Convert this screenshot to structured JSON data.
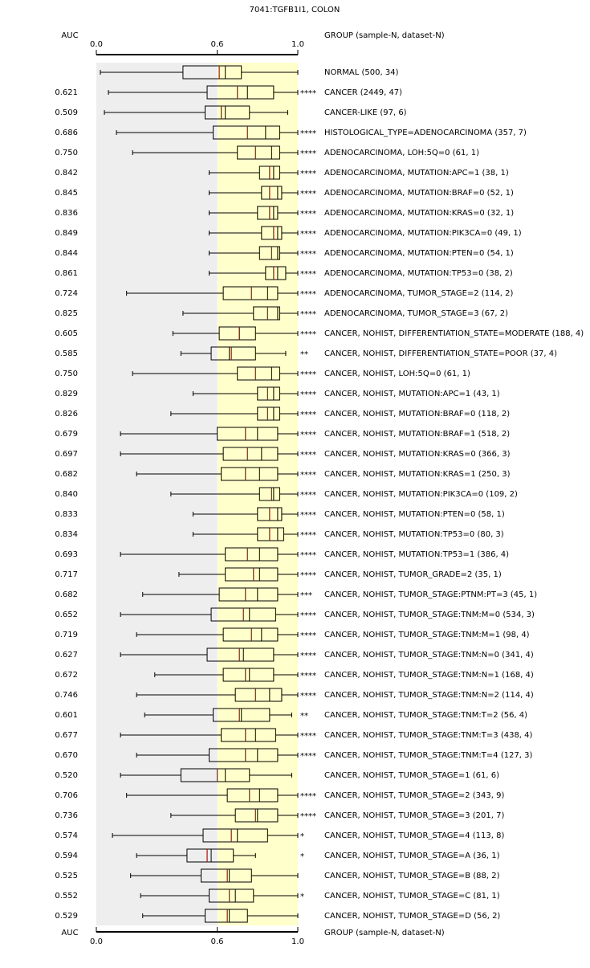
{
  "chart_data": {
    "type": "box",
    "title": "7041:TGFB1I1, COLON",
    "auc_header": "AUC",
    "group_header": "GROUP (sample-N, dataset-N)",
    "xlim": [
      0,
      1
    ],
    "xticks": [
      {
        "value": 0,
        "label": "0.0"
      },
      0.6,
      {
        "value": 1,
        "label": "1.0"
      }
    ],
    "bands": [
      {
        "range": [
          0,
          0.6
        ],
        "color": "#eeeeee"
      },
      {
        "range": [
          0.6,
          1
        ],
        "color": "#ffffcc"
      }
    ],
    "colors": {
      "box": "#000000",
      "mean": "#cc0000",
      "stars": "#cc0000"
    },
    "rows": [
      {
        "label": "NORMAL (500, 34)",
        "auc": null,
        "stars": null,
        "color": "#000000",
        "stats": [
          0.02,
          0.43,
          0.64,
          0.61,
          0.72,
          1.0
        ]
      },
      {
        "label": "CANCER (2449, 47)",
        "auc": {
          "value": 0.621,
          "label": "0.621"
        },
        "stars": "****",
        "color": "#cc0000",
        "stats": [
          0.06,
          0.55,
          0.75,
          0.7,
          0.88,
          1.0
        ]
      },
      {
        "label": "CANCER-LIKE (97, 6)",
        "auc": {
          "value": 0.509,
          "label": "0.509"
        },
        "stars": null,
        "color": "#000000",
        "stats": [
          0.04,
          0.54,
          0.64,
          0.62,
          0.76,
          0.95
        ]
      },
      {
        "label": "HISTOLOGICAL_TYPE=ADENOCARCINOMA (357, 7)",
        "auc": {
          "value": 0.686,
          "label": "0.686"
        },
        "stars": "****",
        "color": "#cc0000",
        "stats": [
          0.1,
          0.58,
          0.84,
          0.75,
          0.91,
          1.0
        ]
      },
      {
        "label": "ADENOCARCINOMA, LOH:5Q=0 (61, 1)",
        "auc": {
          "value": 0.75,
          "label": "0.750"
        },
        "stars": "****",
        "color": "#cc0000",
        "stats": [
          0.18,
          0.7,
          0.87,
          0.79,
          0.91,
          1.0
        ]
      },
      {
        "label": "ADENOCARCINOMA, MUTATION:APC=1 (38, 1)",
        "auc": {
          "value": 0.842,
          "label": "0.842"
        },
        "stars": "****",
        "color": "#cc0000",
        "stats": [
          0.56,
          0.81,
          0.88,
          0.86,
          0.91,
          1.0
        ]
      },
      {
        "label": "ADENOCARCINOMA, MUTATION:BRAF=0 (52, 1)",
        "auc": {
          "value": 0.845,
          "label": "0.845"
        },
        "stars": "****",
        "color": "#cc0000",
        "stats": [
          0.56,
          0.82,
          0.9,
          0.86,
          0.92,
          1.0
        ]
      },
      {
        "label": "ADENOCARCINOMA, MUTATION:KRAS=0 (32, 1)",
        "auc": {
          "value": 0.836,
          "label": "0.836"
        },
        "stars": "****",
        "color": "#cc0000",
        "stats": [
          0.56,
          0.8,
          0.88,
          0.86,
          0.9,
          1.0
        ]
      },
      {
        "label": "ADENOCARCINOMA, MUTATION:PIK3CA=0 (49, 1)",
        "auc": {
          "value": 0.849,
          "label": "0.849"
        },
        "stars": "****",
        "color": "#cc0000",
        "stats": [
          0.56,
          0.82,
          0.9,
          0.88,
          0.92,
          1.0
        ]
      },
      {
        "label": "ADENOCARCINOMA, MUTATION:PTEN=0 (54, 1)",
        "auc": {
          "value": 0.844,
          "label": "0.844"
        },
        "stars": "****",
        "color": "#cc0000",
        "stats": [
          0.56,
          0.81,
          0.9,
          0.87,
          0.91,
          1.0
        ]
      },
      {
        "label": "ADENOCARCINOMA, MUTATION:TP53=0 (38, 2)",
        "auc": {
          "value": 0.861,
          "label": "0.861"
        },
        "stars": "****",
        "color": "#cc0000",
        "stats": [
          0.56,
          0.84,
          0.9,
          0.88,
          0.94,
          1.0
        ]
      },
      {
        "label": "ADENOCARCINOMA, TUMOR_STAGE=2 (114, 2)",
        "auc": {
          "value": 0.724,
          "label": "0.724"
        },
        "stars": "****",
        "color": "#cc0000",
        "stats": [
          0.15,
          0.63,
          0.85,
          0.77,
          0.9,
          1.0
        ]
      },
      {
        "label": "ADENOCARCINOMA, TUMOR_STAGE=3 (67, 2)",
        "auc": {
          "value": 0.825,
          "label": "0.825"
        },
        "stars": "****",
        "color": "#cc0000",
        "stats": [
          0.43,
          0.78,
          0.9,
          0.85,
          0.91,
          1.0
        ]
      },
      {
        "label": "CANCER, NOHIST, DIFFERENTIATION_STATE=MODERATE (188, 4)",
        "auc": {
          "value": 0.605,
          "label": "0.605"
        },
        "stars": "****",
        "color": "#cc0000",
        "stats": [
          0.38,
          0.61,
          0.71,
          0.71,
          0.79,
          1.0
        ]
      },
      {
        "label": "CANCER, NOHIST, DIFFERENTIATION_STATE=POOR (37, 4)",
        "auc": {
          "value": 0.585,
          "label": "0.585"
        },
        "stars": "**",
        "color": "#994444",
        "stats": [
          0.42,
          0.57,
          0.66,
          0.67,
          0.79,
          0.94
        ]
      },
      {
        "label": "CANCER, NOHIST, LOH:5Q=0 (61, 1)",
        "auc": {
          "value": 0.75,
          "label": "0.750"
        },
        "stars": "****",
        "color": "#cc0000",
        "stats": [
          0.18,
          0.7,
          0.87,
          0.79,
          0.91,
          1.0
        ]
      },
      {
        "label": "CANCER, NOHIST, MUTATION:APC=1 (43, 1)",
        "auc": {
          "value": 0.829,
          "label": "0.829"
        },
        "stars": "****",
        "color": "#cc0000",
        "stats": [
          0.48,
          0.8,
          0.88,
          0.85,
          0.91,
          1.0
        ]
      },
      {
        "label": "CANCER, NOHIST, MUTATION:BRAF=0 (118, 2)",
        "auc": {
          "value": 0.826,
          "label": "0.826"
        },
        "stars": "****",
        "color": "#cc0000",
        "stats": [
          0.37,
          0.8,
          0.88,
          0.85,
          0.91,
          1.0
        ]
      },
      {
        "label": "CANCER, NOHIST, MUTATION:BRAF=1 (518, 2)",
        "auc": {
          "value": 0.679,
          "label": "0.679"
        },
        "stars": "****",
        "color": "#cc0000",
        "stats": [
          0.12,
          0.6,
          0.8,
          0.74,
          0.9,
          1.0
        ]
      },
      {
        "label": "CANCER, NOHIST, MUTATION:KRAS=0 (366, 3)",
        "auc": {
          "value": 0.697,
          "label": "0.697"
        },
        "stars": "****",
        "color": "#cc0000",
        "stats": [
          0.12,
          0.63,
          0.82,
          0.75,
          0.9,
          1.0
        ]
      },
      {
        "label": "CANCER, NOHIST, MUTATION:KRAS=1 (250, 3)",
        "auc": {
          "value": 0.682,
          "label": "0.682"
        },
        "stars": "****",
        "color": "#cc0000",
        "stats": [
          0.2,
          0.62,
          0.81,
          0.74,
          0.9,
          1.0
        ]
      },
      {
        "label": "CANCER, NOHIST, MUTATION:PIK3CA=0 (109, 2)",
        "auc": {
          "value": 0.84,
          "label": "0.840"
        },
        "stars": "****",
        "color": "#cc0000",
        "stats": [
          0.37,
          0.81,
          0.88,
          0.87,
          0.91,
          1.0
        ]
      },
      {
        "label": "CANCER, NOHIST, MUTATION:PTEN=0 (58, 1)",
        "auc": {
          "value": 0.833,
          "label": "0.833"
        },
        "stars": "****",
        "color": "#cc0000",
        "stats": [
          0.48,
          0.8,
          0.9,
          0.86,
          0.92,
          1.0
        ]
      },
      {
        "label": "CANCER, NOHIST, MUTATION:TP53=0 (80, 3)",
        "auc": {
          "value": 0.834,
          "label": "0.834"
        },
        "stars": "****",
        "color": "#cc0000",
        "stats": [
          0.48,
          0.8,
          0.9,
          0.86,
          0.93,
          1.0
        ]
      },
      {
        "label": "CANCER, NOHIST, MUTATION:TP53=1 (386, 4)",
        "auc": {
          "value": 0.693,
          "label": "0.693"
        },
        "stars": "****",
        "color": "#cc0000",
        "stats": [
          0.12,
          0.64,
          0.81,
          0.75,
          0.9,
          1.0
        ]
      },
      {
        "label": "CANCER, NOHIST, TUMOR_GRADE=2 (35, 1)",
        "auc": {
          "value": 0.717,
          "label": "0.717"
        },
        "stars": "****",
        "color": "#cc0000",
        "stats": [
          0.41,
          0.64,
          0.81,
          0.78,
          0.9,
          1.0
        ]
      },
      {
        "label": "CANCER, NOHIST, TUMOR_STAGE:PTNM:PT=3 (45, 1)",
        "auc": {
          "value": 0.682,
          "label": "0.682"
        },
        "stars": "***",
        "color": "#cc0000",
        "stats": [
          0.23,
          0.61,
          0.8,
          0.74,
          0.9,
          1.0
        ]
      },
      {
        "label": "CANCER, NOHIST, TUMOR_STAGE:TNM:M=0 (534, 3)",
        "auc": {
          "value": 0.652,
          "label": "0.652"
        },
        "stars": "****",
        "color": "#cc0000",
        "stats": [
          0.12,
          0.57,
          0.76,
          0.73,
          0.89,
          1.0
        ]
      },
      {
        "label": "CANCER, NOHIST, TUMOR_STAGE:TNM:M=1 (98, 4)",
        "auc": {
          "value": 0.719,
          "label": "0.719"
        },
        "stars": "****",
        "color": "#cc0000",
        "stats": [
          0.2,
          0.63,
          0.82,
          0.77,
          0.9,
          1.0
        ]
      },
      {
        "label": "CANCER, NOHIST, TUMOR_STAGE:TNM:N=0 (341, 4)",
        "auc": {
          "value": 0.627,
          "label": "0.627"
        },
        "stars": "****",
        "color": "#cc0000",
        "stats": [
          0.12,
          0.55,
          0.73,
          0.71,
          0.88,
          1.0
        ]
      },
      {
        "label": "CANCER, NOHIST, TUMOR_STAGE:TNM:N=1 (168, 4)",
        "auc": {
          "value": 0.672,
          "label": "0.672"
        },
        "stars": "****",
        "color": "#cc0000",
        "stats": [
          0.29,
          0.63,
          0.76,
          0.74,
          0.88,
          1.0
        ]
      },
      {
        "label": "CANCER, NOHIST, TUMOR_STAGE:TNM:N=2 (114, 4)",
        "auc": {
          "value": 0.746,
          "label": "0.746"
        },
        "stars": "****",
        "color": "#cc0000",
        "stats": [
          0.2,
          0.69,
          0.86,
          0.79,
          0.92,
          1.0
        ]
      },
      {
        "label": "CANCER, NOHIST, TUMOR_STAGE:TNM:T=2 (56, 4)",
        "auc": {
          "value": 0.601,
          "label": "0.601"
        },
        "stars": "**",
        "color": "#994444",
        "stats": [
          0.24,
          0.58,
          0.72,
          0.71,
          0.86,
          0.97
        ]
      },
      {
        "label": "CANCER, NOHIST, TUMOR_STAGE:TNM:T=3 (438, 4)",
        "auc": {
          "value": 0.677,
          "label": "0.677"
        },
        "stars": "****",
        "color": "#cc0000",
        "stats": [
          0.12,
          0.62,
          0.79,
          0.74,
          0.89,
          1.0
        ]
      },
      {
        "label": "CANCER, NOHIST, TUMOR_STAGE:TNM:T=4 (127, 3)",
        "auc": {
          "value": 0.67,
          "label": "0.670"
        },
        "stars": "****",
        "color": "#cc0000",
        "stats": [
          0.2,
          0.56,
          0.8,
          0.74,
          0.9,
          1.0
        ]
      },
      {
        "label": "CANCER, NOHIST, TUMOR_STAGE=1 (61, 6)",
        "auc": {
          "value": 0.52,
          "label": "0.520"
        },
        "stars": null,
        "color": "#000000",
        "stats": [
          0.12,
          0.42,
          0.64,
          0.6,
          0.76,
          0.97
        ]
      },
      {
        "label": "CANCER, NOHIST, TUMOR_STAGE=2 (343, 9)",
        "auc": {
          "value": 0.706,
          "label": "0.706"
        },
        "stars": "****",
        "color": "#cc0000",
        "stats": [
          0.15,
          0.65,
          0.81,
          0.76,
          0.9,
          1.0
        ]
      },
      {
        "label": "CANCER, NOHIST, TUMOR_STAGE=3 (201, 7)",
        "auc": {
          "value": 0.736,
          "label": "0.736"
        },
        "stars": "****",
        "color": "#cc0000",
        "stats": [
          0.37,
          0.69,
          0.8,
          0.79,
          0.9,
          1.0
        ]
      },
      {
        "label": "CANCER, NOHIST, TUMOR_STAGE=4 (113, 8)",
        "auc": {
          "value": 0.574,
          "label": "0.574"
        },
        "stars": "*",
        "color": "#994444",
        "stats": [
          0.08,
          0.53,
          0.7,
          0.67,
          0.85,
          1.0
        ]
      },
      {
        "label": "CANCER, NOHIST, TUMOR_STAGE=A (36, 1)",
        "auc": {
          "value": 0.594,
          "label": "0.594"
        },
        "stars": "*",
        "color": "#000080",
        "stats": [
          0.2,
          0.45,
          0.57,
          0.55,
          0.68,
          0.79
        ]
      },
      {
        "label": "CANCER, NOHIST, TUMOR_STAGE=B (88, 2)",
        "auc": {
          "value": 0.525,
          "label": "0.525"
        },
        "stars": null,
        "color": "#000000",
        "stats": [
          0.17,
          0.52,
          0.66,
          0.65,
          0.77,
          1.0
        ]
      },
      {
        "label": "CANCER, NOHIST, TUMOR_STAGE=C (81, 1)",
        "auc": {
          "value": 0.552,
          "label": "0.552"
        },
        "stars": "*",
        "color": "#994444",
        "stats": [
          0.22,
          0.56,
          0.69,
          0.66,
          0.78,
          1.0
        ]
      },
      {
        "label": "CANCER, NOHIST, TUMOR_STAGE=D (56, 2)",
        "auc": {
          "value": 0.529,
          "label": "0.529"
        },
        "stars": null,
        "color": "#000000",
        "stats": [
          0.23,
          0.54,
          0.66,
          0.65,
          0.75,
          1.0
        ]
      }
    ]
  }
}
